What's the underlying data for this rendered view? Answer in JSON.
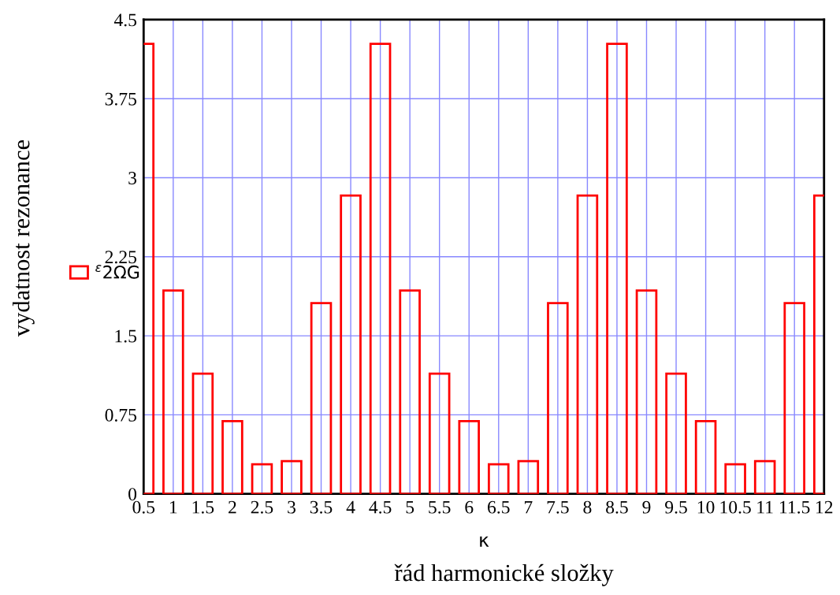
{
  "chart_data": {
    "type": "bar",
    "x": [
      0.5,
      1,
      1.5,
      2,
      2.5,
      3,
      3.5,
      4,
      4.5,
      5,
      5.5,
      6,
      6.5,
      7,
      7.5,
      8,
      8.5,
      9,
      9.5,
      10,
      10.5,
      11,
      11.5,
      12
    ],
    "series": [
      {
        "name": "$^{ε}$2ΩG",
        "color": "#ff0000",
        "values": [
          4.27,
          1.93,
          1.14,
          0.69,
          0.28,
          0.31,
          1.81,
          2.83,
          4.27,
          1.93,
          1.14,
          0.69,
          0.28,
          0.31,
          1.81,
          2.83,
          4.27,
          1.93,
          1.14,
          0.69,
          0.28,
          0.31,
          1.81,
          2.83
        ]
      }
    ],
    "ylabel": "vydatnost rezonance",
    "xlabel": "κ",
    "annotations": [
      "řád harmonické složky"
    ],
    "xlim": [
      0.5,
      12
    ],
    "xticks": [
      0.5,
      1,
      1.5,
      2,
      2.5,
      3,
      3.5,
      4,
      4.5,
      5,
      5.5,
      6,
      6.5,
      7,
      7.5,
      8,
      8.5,
      9,
      9.5,
      10,
      10.5,
      11,
      11.5,
      12
    ],
    "ylim": [
      0,
      4.5
    ],
    "yticks": [
      0,
      0.75,
      1.5,
      2.25,
      3,
      3.75,
      4.5
    ],
    "grid": true,
    "legend": "left"
  }
}
